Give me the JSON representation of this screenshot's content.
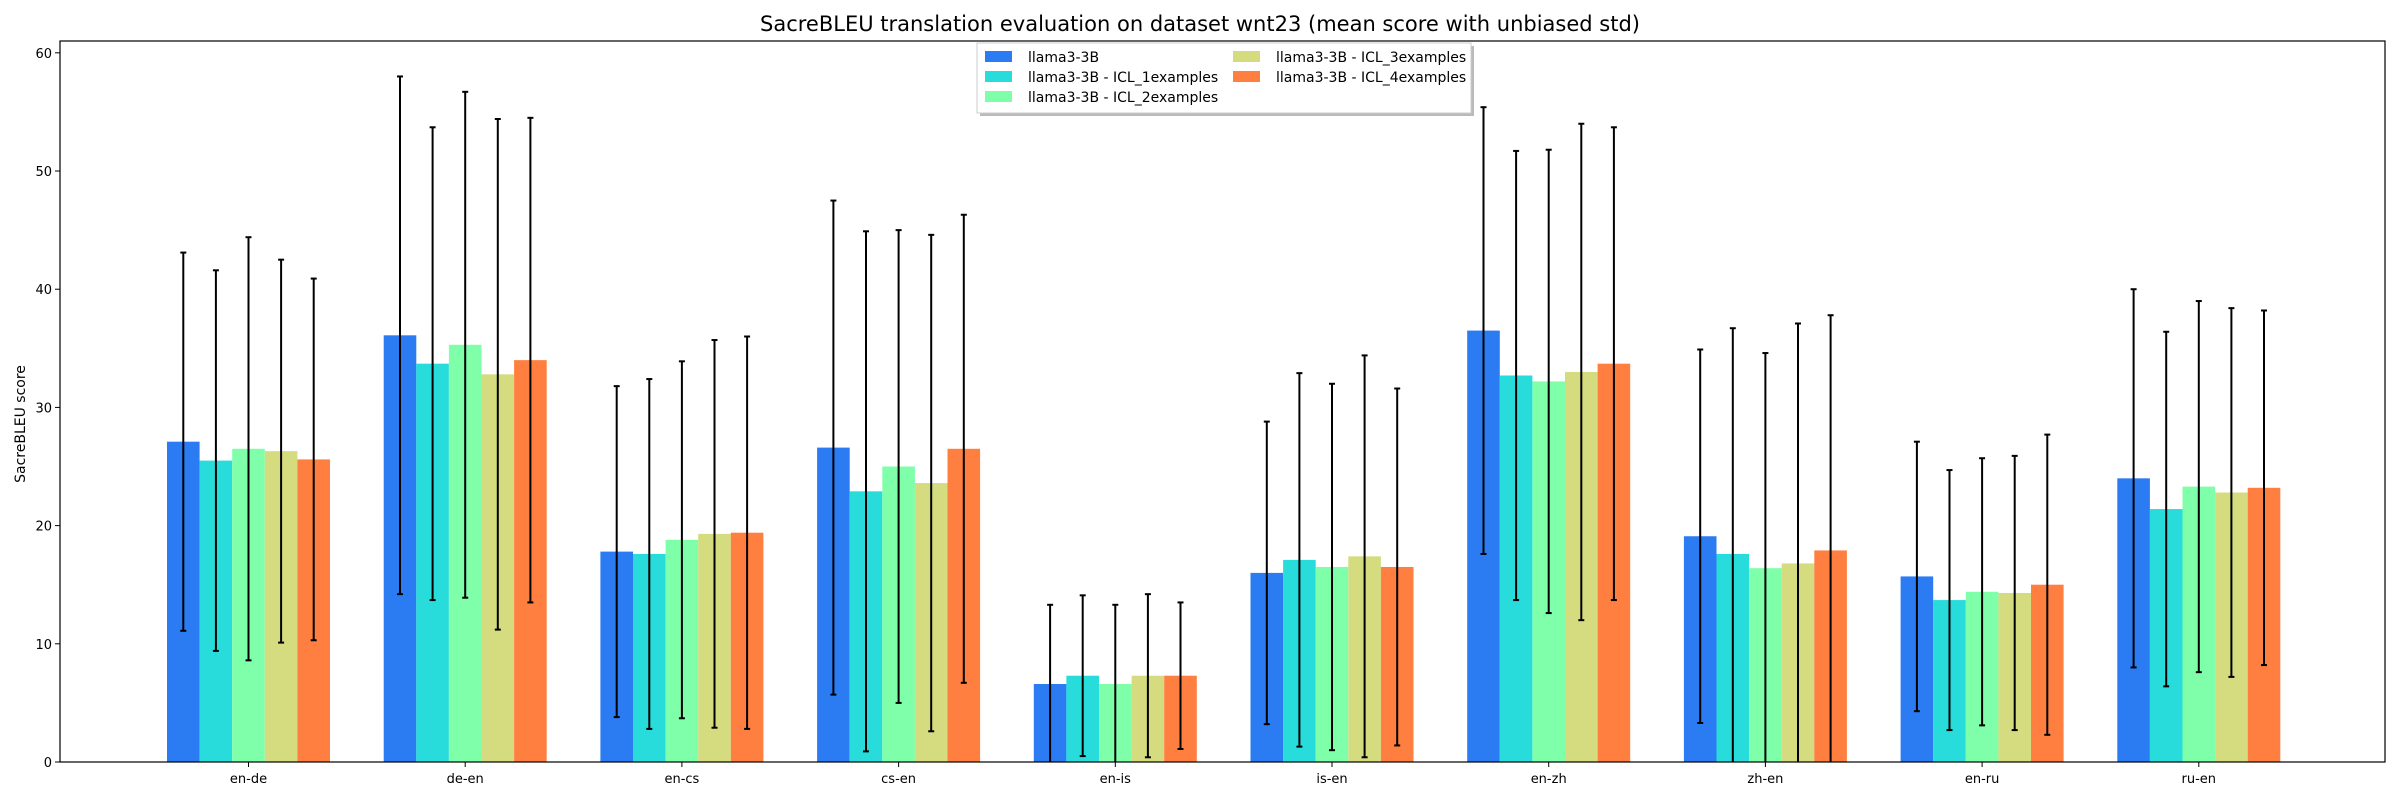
{
  "chart_data": {
    "type": "bar",
    "title": "SacreBLEU translation evaluation on dataset wnt23 (mean score with unbiased std)",
    "xlabel": "",
    "ylabel": "SacreBLEU score",
    "ylim": [
      0,
      61
    ],
    "yticks": [
      "0",
      "10",
      "20",
      "30",
      "40",
      "50",
      "60"
    ],
    "categories": [
      "en-de",
      "de-en",
      "en-cs",
      "cs-en",
      "en-is",
      "is-en",
      "en-zh",
      "zh-en",
      "en-ru",
      "ru-en"
    ],
    "legend_position": "top-center",
    "grid": false,
    "error_bars": "unbiased std",
    "series": [
      {
        "name": "llama3-3B",
        "color": "#2b7bf2",
        "values": [
          27.1,
          36.1,
          17.8,
          26.6,
          6.6,
          16.0,
          36.5,
          19.1,
          15.7,
          24.0
        ],
        "std": [
          16.0,
          21.9,
          14.0,
          20.9,
          6.7,
          12.8,
          18.9,
          15.8,
          11.4,
          16.0
        ]
      },
      {
        "name": "llama3-3B - ICL_1examples",
        "color": "#28dcdc",
        "values": [
          25.5,
          33.7,
          17.6,
          22.9,
          7.3,
          17.1,
          32.7,
          17.6,
          13.7,
          21.4
        ],
        "std": [
          16.1,
          20.0,
          14.8,
          22.0,
          6.8,
          15.8,
          19.0,
          19.1,
          11.0,
          15.0
        ]
      },
      {
        "name": "llama3-3B - ICL_2examples",
        "color": "#80ffaa",
        "values": [
          26.5,
          35.3,
          18.8,
          25.0,
          6.6,
          16.5,
          32.2,
          16.4,
          14.4,
          23.3
        ],
        "std": [
          17.9,
          21.4,
          15.1,
          20.0,
          6.7,
          15.5,
          19.6,
          18.2,
          11.3,
          15.7
        ]
      },
      {
        "name": "llama3-3B - ICL_3examples",
        "color": "#d4dc7f",
        "values": [
          26.3,
          32.8,
          19.3,
          23.6,
          7.3,
          17.4,
          33.0,
          16.8,
          14.3,
          22.8
        ],
        "std": [
          16.2,
          21.6,
          16.4,
          21.0,
          6.9,
          17.0,
          21.0,
          20.3,
          11.6,
          15.6
        ]
      },
      {
        "name": "llama3-3B - ICL_4examples",
        "color": "#ff7f40",
        "values": [
          25.6,
          34.0,
          19.4,
          26.5,
          7.3,
          16.5,
          33.7,
          17.9,
          15.0,
          23.2
        ],
        "std": [
          15.3,
          20.5,
          16.6,
          19.8,
          6.2,
          15.1,
          20.0,
          19.9,
          12.7,
          15.0
        ]
      }
    ]
  }
}
